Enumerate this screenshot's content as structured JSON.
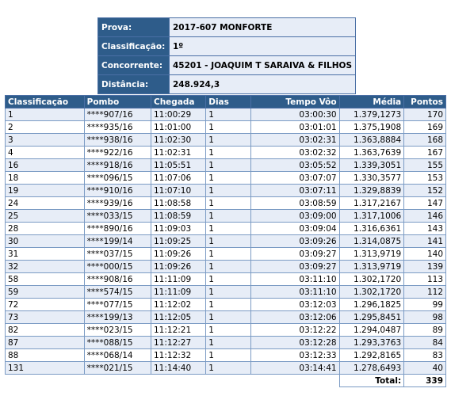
{
  "info": {
    "rows": [
      {
        "label": "Prova:",
        "value": "2017-607 MONFORTE"
      },
      {
        "label": "Classificação:",
        "value": "1º"
      },
      {
        "label": "Concorrente:",
        "value": "45201 - JOAQUIM T SARAIVA & FILHOS"
      },
      {
        "label": "Distância:",
        "value": "248.924,3"
      }
    ]
  },
  "table": {
    "headers": [
      "Classificação",
      "Pombo",
      "Chegada",
      "Dias",
      "Tempo Vôo",
      "Média",
      "Pontos"
    ],
    "rows": [
      [
        "1",
        "****907/16",
        "11:00:29",
        "1",
        "03:00:30",
        "1.379,1273",
        "170"
      ],
      [
        "2",
        "****935/16",
        "11:01:00",
        "1",
        "03:01:01",
        "1.375,1908",
        "169"
      ],
      [
        "3",
        "****938/16",
        "11:02:30",
        "1",
        "03:02:31",
        "1.363,8884",
        "168"
      ],
      [
        "4",
        "****922/16",
        "11:02:31",
        "1",
        "03:02:32",
        "1.363,7639",
        "167"
      ],
      [
        "16",
        "****918/16",
        "11:05:51",
        "1",
        "03:05:52",
        "1.339,3051",
        "155"
      ],
      [
        "18",
        "****096/15",
        "11:07:06",
        "1",
        "03:07:07",
        "1.330,3577",
        "153"
      ],
      [
        "19",
        "****910/16",
        "11:07:10",
        "1",
        "03:07:11",
        "1.329,8839",
        "152"
      ],
      [
        "24",
        "****939/16",
        "11:08:58",
        "1",
        "03:08:59",
        "1.317,2167",
        "147"
      ],
      [
        "25",
        "****033/15",
        "11:08:59",
        "1",
        "03:09:00",
        "1.317,1006",
        "146"
      ],
      [
        "28",
        "****890/16",
        "11:09:03",
        "1",
        "03:09:04",
        "1.316,6361",
        "143"
      ],
      [
        "30",
        "****199/14",
        "11:09:25",
        "1",
        "03:09:26",
        "1.314,0875",
        "141"
      ],
      [
        "31",
        "****037/15",
        "11:09:26",
        "1",
        "03:09:27",
        "1.313,9719",
        "140"
      ],
      [
        "32",
        "****000/15",
        "11:09:26",
        "1",
        "03:09:27",
        "1.313,9719",
        "139"
      ],
      [
        "58",
        "****908/16",
        "11:11:09",
        "1",
        "03:11:10",
        "1.302,1720",
        "113"
      ],
      [
        "59",
        "****574/15",
        "11:11:09",
        "1",
        "03:11:10",
        "1.302,1720",
        "112"
      ],
      [
        "72",
        "****077/15",
        "11:12:02",
        "1",
        "03:12:03",
        "1.296,1825",
        "99"
      ],
      [
        "73",
        "****199/13",
        "11:12:05",
        "1",
        "03:12:06",
        "1.295,8451",
        "98"
      ],
      [
        "82",
        "****023/15",
        "11:12:21",
        "1",
        "03:12:22",
        "1.294,0487",
        "89"
      ],
      [
        "87",
        "****088/15",
        "11:12:27",
        "1",
        "03:12:28",
        "1.293,3763",
        "84"
      ],
      [
        "88",
        "****068/14",
        "11:12:32",
        "1",
        "03:12:33",
        "1.292,8165",
        "83"
      ],
      [
        "131",
        "****021/15",
        "11:14:40",
        "1",
        "03:14:41",
        "1.278,6493",
        "40"
      ]
    ],
    "total_label": "Total:",
    "total_value": "339"
  }
}
